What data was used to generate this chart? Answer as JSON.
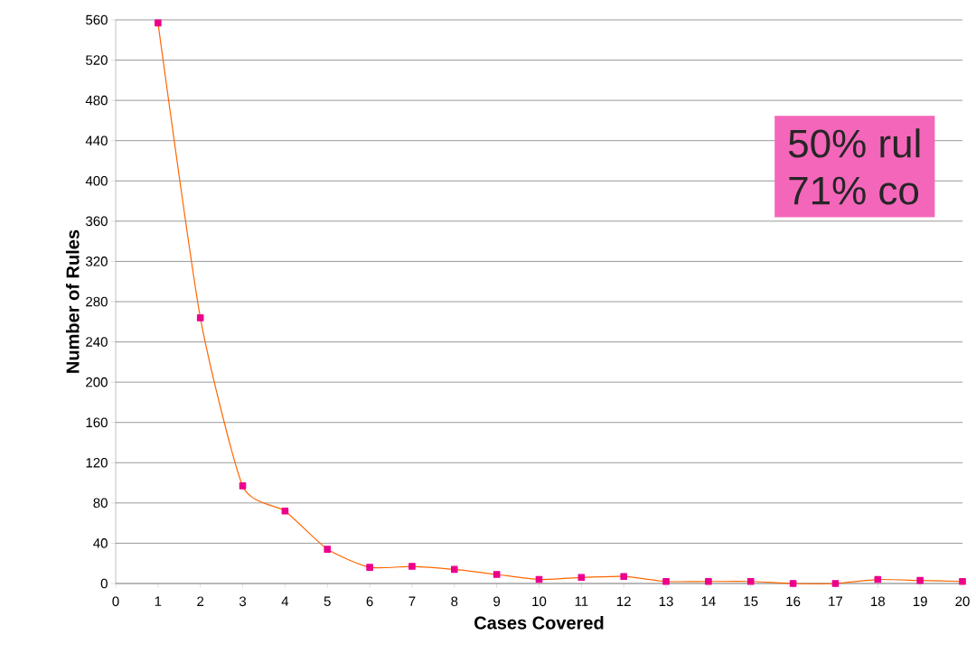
{
  "chart_data": {
    "type": "line",
    "xlabel": "Cases Covered",
    "ylabel": "Number of Rules",
    "x": [
      1,
      2,
      3,
      4,
      5,
      6,
      7,
      8,
      9,
      10,
      11,
      12,
      13,
      14,
      15,
      16,
      17,
      18,
      19,
      20
    ],
    "series": [
      {
        "color": "#ff6600",
        "values": [
          557,
          264,
          97,
          72,
          34,
          16,
          17,
          14,
          9,
          4,
          6,
          7,
          2,
          2,
          2,
          0,
          0,
          4,
          3,
          2
        ]
      }
    ],
    "marker": "square",
    "line_style": "solid",
    "grid": "y",
    "xlim": [
      0,
      20
    ],
    "xticks": [
      0,
      1,
      2,
      3,
      4,
      5,
      6,
      7,
      8,
      9,
      10,
      11,
      12,
      13,
      14,
      15,
      16,
      17,
      18,
      19,
      20
    ],
    "ylim": [
      0,
      560
    ],
    "yticks": [
      0,
      40,
      80,
      120,
      160,
      200,
      240,
      280,
      320,
      360,
      400,
      440,
      480,
      520,
      560
    ],
    "annotations": [
      "50% rul",
      "71% co"
    ]
  }
}
